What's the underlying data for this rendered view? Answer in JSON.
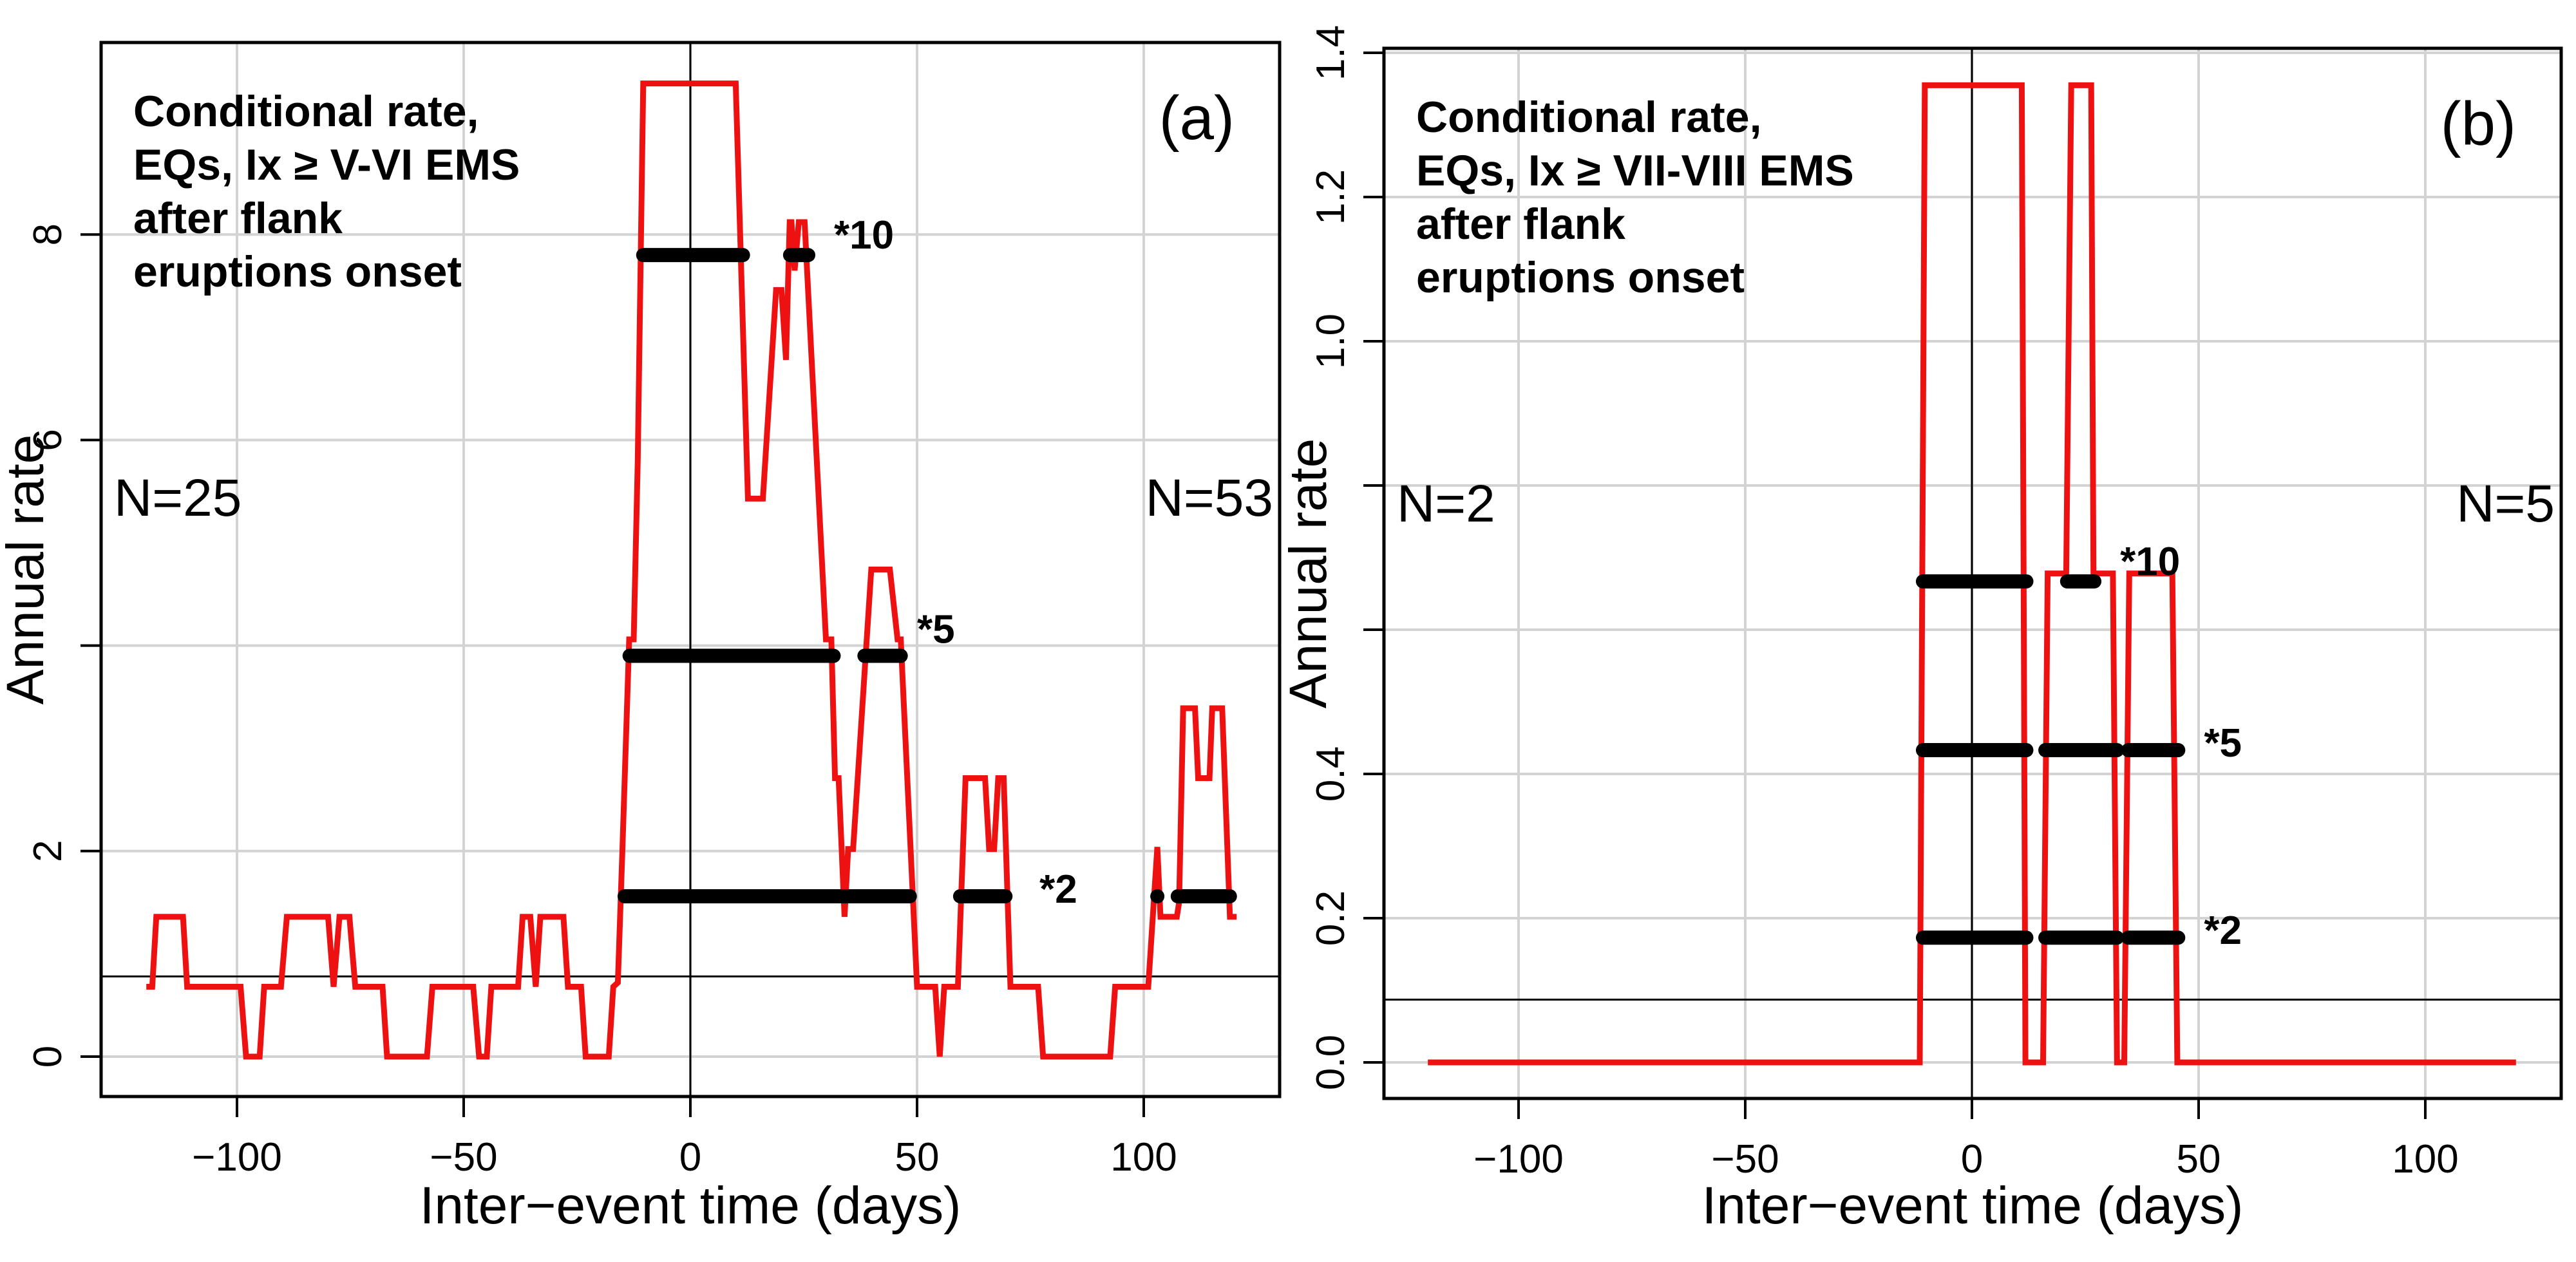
{
  "chart_data": [
    {
      "type": "line",
      "panel_label": "(a)",
      "annotation": [
        "Conditional rate,",
        "EQs, Ix ≥ V-VI EMS",
        "after flank",
        "eruptions onset"
      ],
      "n_left": "N=25",
      "n_right": "N=53",
      "xlabel": "Inter−event time (days)",
      "ylabel": "Annual rate",
      "xlim": [
        -130,
        130
      ],
      "ylim": [
        -0.6,
        9.9
      ],
      "xticks": [
        -100,
        -50,
        0,
        50,
        100
      ],
      "xtick_labels": [
        "−100",
        "−50",
        "0",
        "50",
        "100"
      ],
      "yticks": [
        0,
        2,
        4,
        6,
        8
      ],
      "ytick_labels": [
        "0",
        "2",
        "",
        "6",
        "8"
      ],
      "grid": true,
      "baseline_rate": 0.78,
      "series": [
        {
          "name": "conditional rate",
          "color": "#ee1111",
          "x": [
            -120,
            -118.7,
            -117.8,
            -111.9,
            -111,
            -99.2,
            -98,
            -95,
            -94,
            -90.3,
            -89,
            -79.9,
            -78.7,
            -77.4,
            -75.2,
            -73.9,
            -67.9,
            -66.9,
            -58.1,
            -56.9,
            -47.9,
            -46.6,
            -44.9,
            -43.9,
            -38,
            -37,
            -35.3,
            -34.1,
            -33.1,
            -28,
            -27,
            -24.1,
            -23.1,
            -18,
            -17,
            -16,
            -15,
            -13.5,
            -12.5,
            -11.6,
            -10.4,
            -1,
            1,
            10,
            12.7,
            16,
            18.9,
            20.1,
            21.1,
            21.9,
            22.3,
            23,
            23.9,
            25.2,
            29.9,
            31.1,
            31.9,
            32.7,
            34,
            34.8,
            35.9,
            39.9,
            44,
            45.7,
            46.4,
            50,
            54,
            55,
            56,
            59,
            60.7,
            65,
            65.9,
            67,
            67.9,
            69.1,
            70.6,
            76.7,
            77.8,
            92.6,
            93.7,
            101,
            103,
            103.7,
            107.3,
            107.8,
            108.7,
            111.3,
            112,
            114.5,
            115.1,
            117.3,
            119,
            120.5
          ],
          "y": [
            0.68,
            0.68,
            1.36,
            1.36,
            0.68,
            0.68,
            0,
            0,
            0.68,
            0.68,
            1.36,
            1.36,
            0.68,
            1.36,
            1.36,
            0.68,
            0.68,
            0,
            0,
            0.68,
            0.68,
            0,
            0,
            0.68,
            0.68,
            1.36,
            1.36,
            0.68,
            1.36,
            1.36,
            0.68,
            0.68,
            0,
            0,
            0.68,
            0.72,
            2.0,
            4.06,
            4.06,
            5.8,
            9.47,
            9.47,
            9.47,
            9.47,
            5.43,
            5.43,
            7.46,
            7.46,
            6.78,
            8.12,
            8.12,
            7.65,
            8.12,
            8.12,
            4.06,
            4.06,
            2.71,
            2.71,
            1.36,
            2.02,
            2.02,
            4.74,
            4.74,
            4.06,
            4.06,
            0.68,
            0.68,
            0,
            0.68,
            0.68,
            2.71,
            2.71,
            2.02,
            2.02,
            2.71,
            2.71,
            0.68,
            0.68,
            0,
            0,
            0.68,
            0.68,
            2.04,
            1.36,
            1.36,
            1.5,
            3.39,
            3.39,
            2.71,
            2.71,
            3.39,
            3.39,
            1.36,
            1.36
          ]
        }
      ],
      "thresholds": [
        {
          "label": "*10",
          "value": 7.8,
          "segments": [
            [
              -10.4,
              11.6
            ],
            [
              22,
              26
            ]
          ]
        },
        {
          "label": "*5",
          "value": 3.9,
          "segments": [
            [
              -13.4,
              31.6
            ],
            [
              38.4,
              46.4
            ]
          ]
        },
        {
          "label": "*2",
          "value": 1.56,
          "segments": [
            [
              -14.5,
              48.4
            ],
            [
              59.5,
              69.5
            ],
            [
              103,
              103
            ],
            [
              107.5,
              119
            ]
          ]
        }
      ]
    },
    {
      "type": "line",
      "panel_label": "(b)",
      "annotation": [
        "Conditional rate,",
        "EQs, Ix ≥ VII-VIII EMS",
        "after flank",
        "eruptions onset"
      ],
      "n_left": "N=2",
      "n_right": "N=5",
      "xlabel": "Inter−event time (days)",
      "ylabel": "Annual rate",
      "xlim": [
        -130,
        130
      ],
      "ylim": [
        -0.05,
        1.41
      ],
      "xticks": [
        -100,
        -50,
        0,
        50,
        100
      ],
      "xtick_labels": [
        "−100",
        "−50",
        "0",
        "50",
        "100"
      ],
      "yticks": [
        0.0,
        0.2,
        0.4,
        0.6,
        0.8,
        1.0,
        1.2,
        1.4
      ],
      "ytick_labels": [
        "0.0",
        "0.2",
        "0.4",
        "",
        "",
        "1.0",
        "1.2",
        "1.4"
      ],
      "grid": true,
      "baseline_rate": 0.087,
      "series": [
        {
          "name": "conditional rate",
          "color": "#ee1111",
          "x": [
            -120,
            -11.5,
            -10.4,
            11,
            11.8,
            15.7,
            16.7,
            20.8,
            21.9,
            26.3,
            26.8,
            31.1,
            32,
            33.6,
            34.7,
            44.2,
            45.3,
            120
          ],
          "y": [
            0,
            0,
            1.355,
            1.355,
            0,
            0,
            0.678,
            0.678,
            1.355,
            1.355,
            0.678,
            0.678,
            0,
            0,
            0.678,
            0.678,
            0,
            0
          ]
        }
      ],
      "thresholds": [
        {
          "label": "*10",
          "value": 0.667,
          "segments": [
            [
              -10.8,
              12
            ],
            [
              21,
              27
            ]
          ]
        },
        {
          "label": "*5",
          "value": 0.433,
          "segments": [
            [
              -10.8,
              12
            ],
            [
              16.2,
              32
            ],
            [
              34.5,
              45.5
            ]
          ]
        },
        {
          "label": "*2",
          "value": 0.173,
          "segments": [
            [
              -10.8,
              12
            ],
            [
              16.2,
              32
            ],
            [
              34.5,
              45.5
            ]
          ]
        }
      ]
    }
  ]
}
